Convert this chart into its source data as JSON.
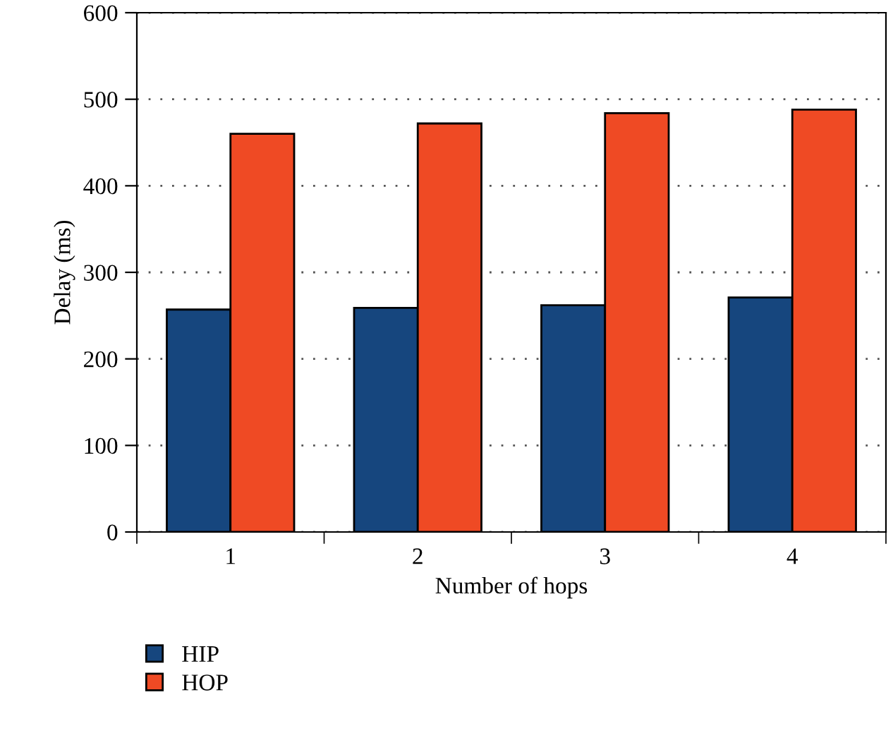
{
  "chart_data": {
    "type": "bar",
    "xlabel": "Number of hops",
    "ylabel": "Delay (ms)",
    "categories": [
      "1",
      "2",
      "3",
      "4"
    ],
    "series": [
      {
        "name": "HIP",
        "color": "#16467e",
        "values": [
          257,
          259,
          262,
          271
        ]
      },
      {
        "name": "HOP",
        "color": "#ef4a24",
        "values": [
          460,
          472,
          484,
          488
        ]
      }
    ],
    "ylim": [
      0,
      600
    ],
    "yticks": [
      0,
      100,
      200,
      300,
      400,
      500,
      600
    ],
    "grid": "y",
    "legend": "bottom left"
  }
}
